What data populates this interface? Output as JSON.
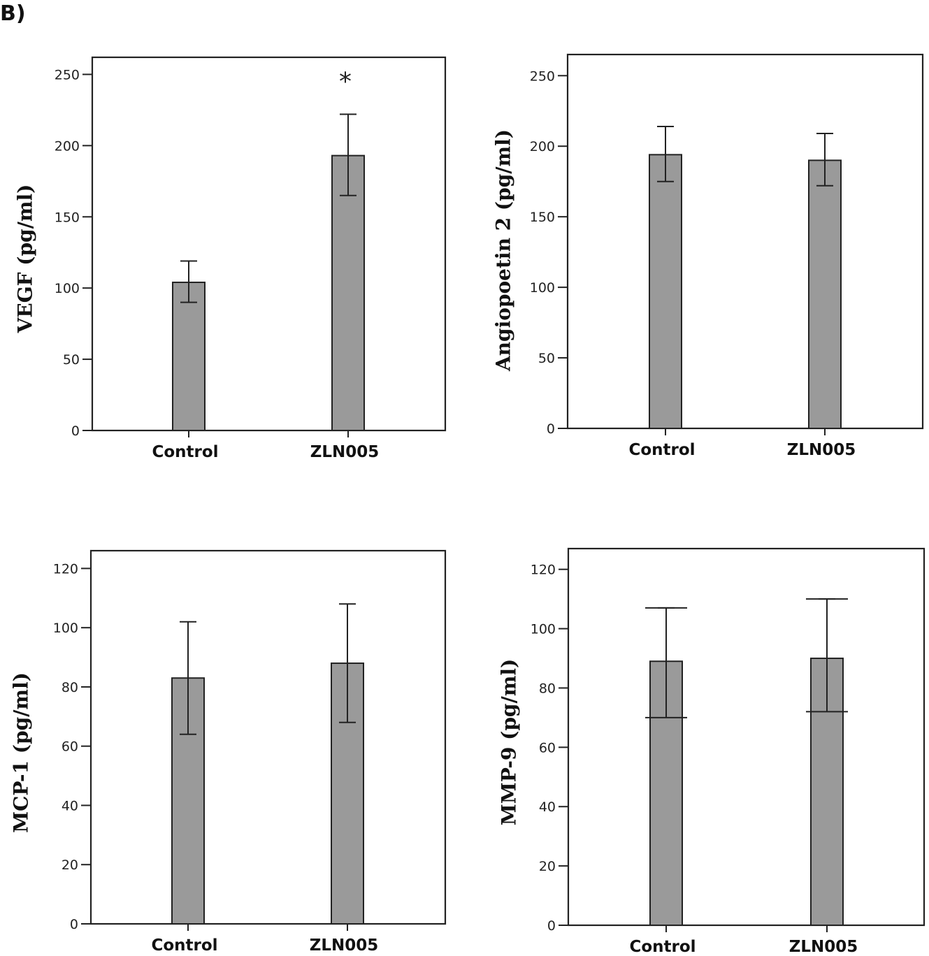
{
  "panel_label": "B)",
  "chart_data": [
    {
      "type": "bar",
      "ylabel": "VEGF (pg/ml)",
      "categories": [
        "Control",
        "ZLN005"
      ],
      "values": [
        104,
        193
      ],
      "errors_lower": [
        90,
        165
      ],
      "errors_upper": [
        119,
        222
      ],
      "ylim": [
        0,
        262
      ],
      "yticks": [
        0,
        50,
        100,
        150,
        200,
        250
      ],
      "annotations": [
        {
          "category": "ZLN005",
          "text": "*",
          "y": 250
        }
      ],
      "grid": false
    },
    {
      "type": "bar",
      "ylabel": "Angiopoetin 2 (pg/ml)",
      "categories": [
        "Control",
        "ZLN005"
      ],
      "values": [
        194,
        190
      ],
      "errors_lower": [
        175,
        172
      ],
      "errors_upper": [
        214,
        209
      ],
      "ylim": [
        0,
        265
      ],
      "yticks": [
        0,
        50,
        100,
        150,
        200,
        250
      ],
      "annotations": [],
      "grid": false
    },
    {
      "type": "bar",
      "ylabel": "MCP-1 (pg/ml)",
      "categories": [
        "Control",
        "ZLN005"
      ],
      "values": [
        83,
        88
      ],
      "errors_lower": [
        64,
        68
      ],
      "errors_upper": [
        102,
        108
      ],
      "ylim": [
        0,
        126
      ],
      "yticks": [
        0,
        20,
        40,
        60,
        80,
        100,
        120
      ],
      "annotations": [],
      "grid": false
    },
    {
      "type": "bar",
      "ylabel": "MMP-9 (pg/ml)",
      "categories": [
        "Control",
        "ZLN005"
      ],
      "values": [
        89,
        90
      ],
      "errors_lower": [
        70,
        72
      ],
      "errors_upper": [
        107,
        110
      ],
      "ylim": [
        0,
        127
      ],
      "yticks": [
        0,
        20,
        40,
        60,
        80,
        100,
        120
      ],
      "annotations": [],
      "grid": false
    }
  ]
}
